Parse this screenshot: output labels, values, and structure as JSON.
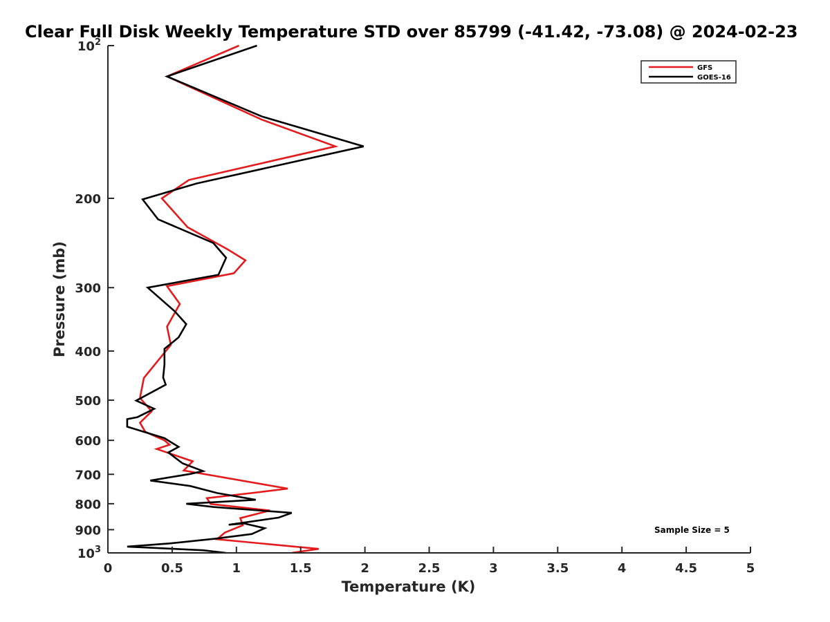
{
  "chart_data": {
    "type": "line",
    "title": "Clear Full Disk Weekly Temperature STD over 85799 (-41.42, -73.08) @ 2024-02-23",
    "xlabel": "Temperature (K)",
    "ylabel": "Pressure (mb)",
    "xlim": [
      0,
      5
    ],
    "ylim": [
      100,
      1000
    ],
    "y_scale": "log",
    "y_reversed": true,
    "grid": false,
    "legend_position": "top-right",
    "x_ticks": [
      "0",
      "0.5",
      "1",
      "1.5",
      "2",
      "2.5",
      "3",
      "3.5",
      "4",
      "4.5",
      "5"
    ],
    "y_ticks": [
      {
        "value": 100,
        "base": "10",
        "exp": "2"
      },
      {
        "value": 200,
        "label": "200"
      },
      {
        "value": 300,
        "label": "300"
      },
      {
        "value": 400,
        "label": "400"
      },
      {
        "value": 500,
        "label": "500"
      },
      {
        "value": 600,
        "label": "600"
      },
      {
        "value": 700,
        "label": "700"
      },
      {
        "value": 800,
        "label": "800"
      },
      {
        "value": 900,
        "label": "900"
      },
      {
        "value": 1000,
        "base": "10",
        "exp": "3"
      }
    ],
    "annotation": "Sample Size = 5",
    "series": [
      {
        "name": "GFS",
        "color": "#e41a1c",
        "points": [
          [
            1.02,
            100
          ],
          [
            0.46,
            115
          ],
          [
            1.2,
            140
          ],
          [
            1.77,
            158
          ],
          [
            0.63,
            184
          ],
          [
            0.42,
            200
          ],
          [
            0.62,
            228
          ],
          [
            0.93,
            252
          ],
          [
            1.07,
            265
          ],
          [
            0.98,
            281
          ],
          [
            0.46,
            298
          ],
          [
            0.56,
            323
          ],
          [
            0.46,
            358
          ],
          [
            0.49,
            389
          ],
          [
            0.28,
            452
          ],
          [
            0.25,
            495
          ],
          [
            0.34,
            526
          ],
          [
            0.25,
            554
          ],
          [
            0.29,
            577
          ],
          [
            0.44,
            600
          ],
          [
            0.48,
            612
          ],
          [
            0.38,
            624
          ],
          [
            0.66,
            660
          ],
          [
            0.59,
            688
          ],
          [
            1.4,
            747
          ],
          [
            1.16,
            760
          ],
          [
            0.77,
            780
          ],
          [
            0.8,
            801
          ],
          [
            1.26,
            825
          ],
          [
            1.03,
            854
          ],
          [
            1.05,
            882
          ],
          [
            0.91,
            912
          ],
          [
            0.85,
            940
          ],
          [
            1.64,
            982
          ],
          [
            1.43,
            1000
          ]
        ]
      },
      {
        "name": "GOES-16",
        "color": "#000000",
        "points": [
          [
            1.16,
            100
          ],
          [
            0.46,
            115
          ],
          [
            1.2,
            138
          ],
          [
            1.99,
            158
          ],
          [
            0.69,
            187
          ],
          [
            0.27,
            201
          ],
          [
            0.39,
            220
          ],
          [
            0.82,
            245
          ],
          [
            0.92,
            262
          ],
          [
            0.86,
            283
          ],
          [
            0.31,
            300
          ],
          [
            0.52,
            334
          ],
          [
            0.61,
            354
          ],
          [
            0.55,
            376
          ],
          [
            0.44,
            396
          ],
          [
            0.44,
            425
          ],
          [
            0.43,
            451
          ],
          [
            0.45,
            466
          ],
          [
            0.22,
            501
          ],
          [
            0.36,
            520
          ],
          [
            0.23,
            540
          ],
          [
            0.15,
            545
          ],
          [
            0.15,
            564
          ],
          [
            0.44,
            594
          ],
          [
            0.55,
            618
          ],
          [
            0.47,
            634
          ],
          [
            0.58,
            666
          ],
          [
            0.74,
            690
          ],
          [
            0.64,
            699
          ],
          [
            0.33,
            720
          ],
          [
            0.64,
            738
          ],
          [
            0.85,
            762
          ],
          [
            1.15,
            786
          ],
          [
            0.61,
            800
          ],
          [
            0.82,
            812
          ],
          [
            1.43,
            834
          ],
          [
            1.33,
            852
          ],
          [
            0.94,
            880
          ],
          [
            1.06,
            875
          ],
          [
            1.22,
            894
          ],
          [
            1.12,
            918
          ],
          [
            0.83,
            938
          ],
          [
            0.48,
            958
          ],
          [
            0.15,
            972
          ],
          [
            0.74,
            988
          ],
          [
            0.92,
            1000
          ]
        ]
      }
    ]
  }
}
